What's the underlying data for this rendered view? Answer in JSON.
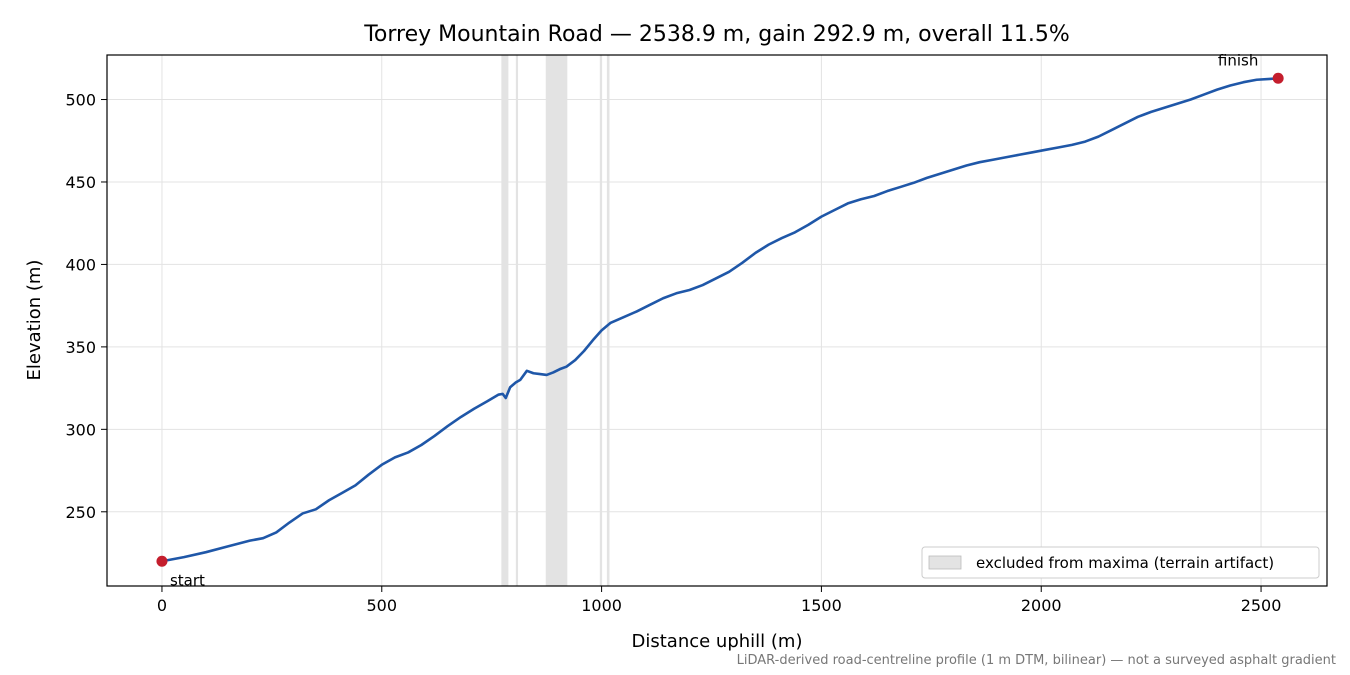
{
  "chart_data": {
    "type": "line",
    "title": "Torrey Mountain Road — 2538.9 m, gain 292.9 m, overall 11.5%",
    "xlabel": "Distance uphill (m)",
    "ylabel": "Elevation (m)",
    "xlim": [
      -125,
      2650
    ],
    "ylim": [
      205,
      527
    ],
    "xticks": [
      0,
      500,
      1000,
      1500,
      2000,
      2500
    ],
    "yticks": [
      250,
      300,
      350,
      400,
      450,
      500
    ],
    "grid": true,
    "series": [
      {
        "color": "#1f57a8",
        "x": [
          0,
          50,
          100,
          150,
          200,
          230,
          260,
          290,
          320,
          350,
          380,
          410,
          440,
          470,
          500,
          530,
          560,
          590,
          620,
          650,
          680,
          710,
          740,
          765,
          775,
          782,
          792,
          805,
          815,
          830,
          845,
          860,
          875,
          890,
          905,
          920,
          940,
          960,
          980,
          1000,
          1020,
          1050,
          1080,
          1110,
          1140,
          1170,
          1200,
          1230,
          1260,
          1290,
          1320,
          1350,
          1380,
          1410,
          1440,
          1470,
          1500,
          1530,
          1560,
          1590,
          1620,
          1650,
          1680,
          1710,
          1740,
          1770,
          1800,
          1830,
          1860,
          1890,
          1920,
          1950,
          1980,
          2010,
          2040,
          2070,
          2100,
          2130,
          2160,
          2190,
          2220,
          2250,
          2280,
          2310,
          2340,
          2370,
          2400,
          2430,
          2460,
          2490,
          2520,
          2538.9
        ],
        "y": [
          220.0,
          222.5,
          225.5,
          229.0,
          232.5,
          234.0,
          237.5,
          243.5,
          249.0,
          251.5,
          257.0,
          261.5,
          266.0,
          272.5,
          278.5,
          283.0,
          286.0,
          290.5,
          296.0,
          302.0,
          307.5,
          312.5,
          317.0,
          321.0,
          321.5,
          319.0,
          325.5,
          328.5,
          330.0,
          335.5,
          334.0,
          333.5,
          333.0,
          334.5,
          336.5,
          338.0,
          342.0,
          347.5,
          354.0,
          360.0,
          364.5,
          368.0,
          371.5,
          375.5,
          379.5,
          382.5,
          384.5,
          387.5,
          391.5,
          395.5,
          401.0,
          407.0,
          412.0,
          416.0,
          419.5,
          424.0,
          429.0,
          433.0,
          437.0,
          439.5,
          441.5,
          444.5,
          447.0,
          449.5,
          452.5,
          455.0,
          457.5,
          460.0,
          462.0,
          463.5,
          465.0,
          466.5,
          468.0,
          469.5,
          471.0,
          472.5,
          474.5,
          477.5,
          481.5,
          485.5,
          489.5,
          492.5,
          495.0,
          497.5,
          500.0,
          503.0,
          506.0,
          508.5,
          510.5,
          512.0,
          512.5,
          512.9
        ]
      }
    ],
    "excluded_bands": [
      [
        772,
        788
      ],
      [
        805,
        810
      ],
      [
        873,
        922
      ],
      [
        996,
        1000
      ],
      [
        1012,
        1018
      ]
    ],
    "legend": {
      "label": "excluded from maxima (terrain artifact)",
      "placement": "lower-right"
    },
    "markers": [
      {
        "label": "start",
        "x": 0,
        "y": 220.0,
        "color": "#c41e2d"
      },
      {
        "label": "finish",
        "x": 2538.9,
        "y": 512.9,
        "color": "#c41e2d"
      }
    ],
    "footnote": "LiDAR-derived road-centreline profile (1 m DTM, bilinear) — not a surveyed asphalt gradient"
  }
}
